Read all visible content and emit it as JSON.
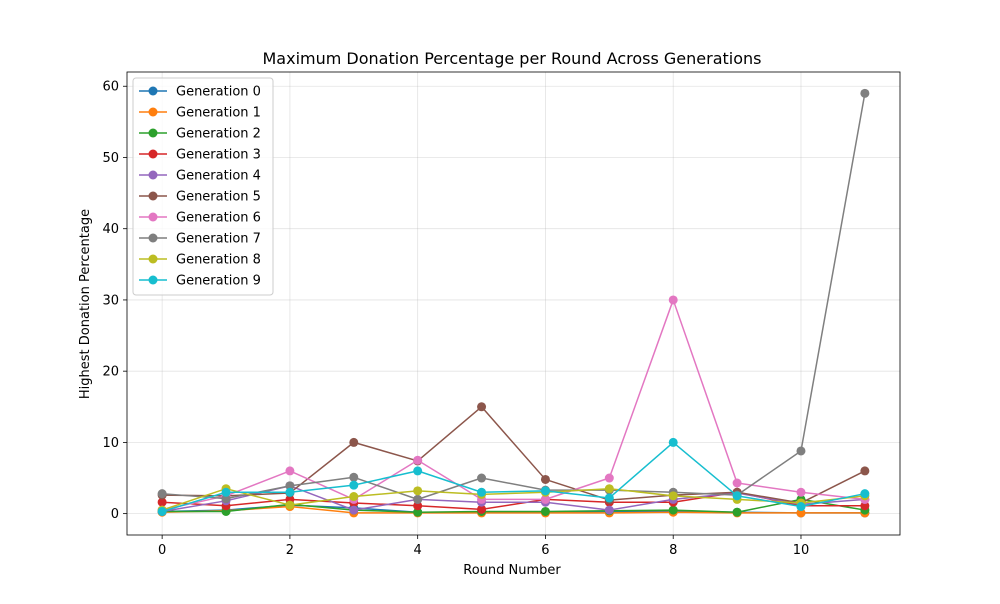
{
  "chart_data": {
    "type": "line",
    "title": "Maximum Donation Percentage per Round Across Generations",
    "xlabel": "Round Number",
    "ylabel": "Highest Donation Percentage",
    "xlim": [
      -0.55,
      11.55
    ],
    "ylim": [
      -3.0,
      62.0
    ],
    "xticks": [
      0,
      2,
      4,
      6,
      8,
      10
    ],
    "yticks": [
      0,
      10,
      20,
      30,
      40,
      50,
      60
    ],
    "grid": true,
    "legend_position": "top-left",
    "x": [
      0,
      1,
      2,
      3,
      4,
      5,
      6,
      7,
      8,
      9,
      10,
      11
    ],
    "series": [
      {
        "name": "Generation 0",
        "color": "#1f77b4",
        "values": [
          0.3,
          0.5,
          1.2,
          0.8,
          0.2,
          0.2,
          0.2,
          0.3,
          0.3,
          0.2,
          0.1,
          0.1
        ]
      },
      {
        "name": "Generation 1",
        "color": "#ff7f0e",
        "values": [
          0.2,
          0.4,
          1.0,
          0.1,
          0.1,
          0.1,
          0.1,
          0.1,
          0.2,
          0.1,
          0.1,
          0.1
        ]
      },
      {
        "name": "Generation 2",
        "color": "#2ca02c",
        "values": [
          0.3,
          0.3,
          1.3,
          0.5,
          0.2,
          0.3,
          0.3,
          0.4,
          0.5,
          0.2,
          2.0,
          0.5
        ]
      },
      {
        "name": "Generation 3",
        "color": "#d62728",
        "values": [
          1.6,
          1.1,
          2.0,
          1.5,
          1.1,
          0.6,
          2.0,
          1.6,
          1.6,
          3.0,
          1.1,
          1.1
        ]
      },
      {
        "name": "Generation 4",
        "color": "#9467bd",
        "values": [
          0.3,
          1.8,
          3.9,
          0.5,
          2.0,
          1.6,
          1.6,
          0.5,
          2.0,
          2.9,
          1.3,
          2.0
        ]
      },
      {
        "name": "Generation 5",
        "color": "#8c564b",
        "values": [
          2.6,
          2.5,
          2.9,
          10.0,
          7.4,
          15.0,
          4.8,
          1.9,
          2.6,
          3.0,
          1.5,
          6.0
        ]
      },
      {
        "name": "Generation 6",
        "color": "#e377c2",
        "values": [
          0.5,
          2.5,
          6.0,
          2.0,
          7.5,
          2.0,
          2.0,
          5.0,
          30.0,
          4.3,
          3.0,
          2.0
        ]
      },
      {
        "name": "Generation 7",
        "color": "#7f7f7f",
        "values": [
          2.8,
          2.1,
          3.9,
          5.1,
          2.0,
          5.0,
          3.3,
          3.3,
          3.0,
          2.6,
          8.8,
          59.0
        ]
      },
      {
        "name": "Generation 8",
        "color": "#bcbd22",
        "values": [
          0.5,
          3.5,
          1.2,
          2.4,
          3.2,
          2.7,
          3.0,
          3.5,
          2.5,
          2.0,
          1.5,
          2.5
        ]
      },
      {
        "name": "Generation 9",
        "color": "#17becf",
        "values": [
          0.3,
          3.0,
          3.0,
          4.0,
          6.0,
          3.0,
          3.2,
          2.2,
          10.0,
          2.5,
          1.0,
          2.8
        ]
      }
    ]
  }
}
